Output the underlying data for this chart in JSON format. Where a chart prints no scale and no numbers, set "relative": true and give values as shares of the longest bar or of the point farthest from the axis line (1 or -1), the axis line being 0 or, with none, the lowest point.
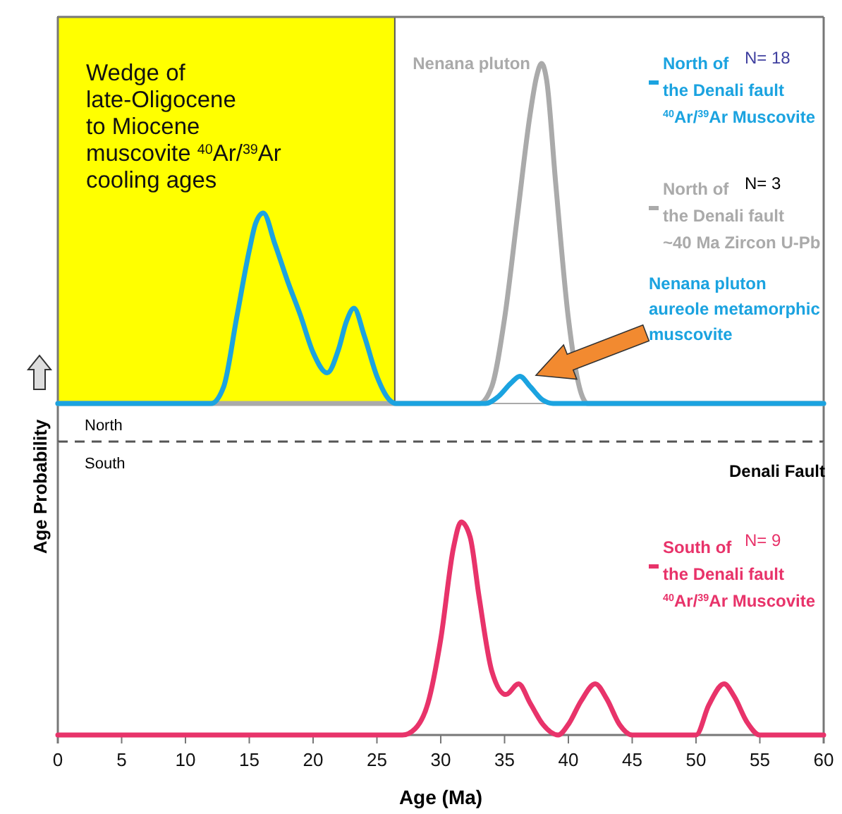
{
  "chart_data": [
    {
      "type": "line",
      "relative": true,
      "xlim": [
        0,
        60
      ],
      "tick_labels": false,
      "legend": "top right",
      "line_style": "solid",
      "marker": "none",
      "series": [
        {
          "name": "North of\nthe Denali fault\n~40 Ma Zircon U-Pb",
          "color": "#aaaaaa",
          "x": [
            0,
            33,
            34,
            35,
            36,
            37,
            37.5,
            37.9,
            38.3,
            39,
            40,
            41,
            41.5,
            60
          ],
          "values": [
            0,
            0,
            0.05,
            0.25,
            0.55,
            0.85,
            0.96,
            1,
            0.95,
            0.65,
            0.25,
            0.03,
            0,
            0
          ]
        },
        {
          "name": "North of\nthe Denali fault\n$^{40}$Ar/$^{39}$Ar Muscovite",
          "color": "#1ba3e0",
          "x": [
            0,
            12,
            13,
            14,
            15,
            15.5,
            16.1,
            17,
            18,
            19,
            20,
            21.1,
            22,
            22.6,
            23.2,
            24,
            25,
            26,
            26.5,
            33.5,
            34.5,
            35.5,
            36.2,
            37,
            38,
            38.8,
            60
          ],
          "values": [
            0,
            0,
            0.05,
            0.25,
            0.45,
            0.53,
            0.56,
            0.47,
            0.36,
            0.26,
            0.15,
            0.09,
            0.16,
            0.24,
            0.28,
            0.2,
            0.08,
            0.01,
            0,
            0,
            0.02,
            0.06,
            0.08,
            0.05,
            0.01,
            0,
            0
          ]
        }
      ],
      "bands": [
        {
          "axis": "x",
          "from": 0,
          "to": 26.4,
          "color": "#ffff00",
          "label": "Wedge of\nlate-Oligocene\nto Miocene\nmuscovite $^{40}$Ar/$^{39}$Ar\ncooling ages"
        }
      ],
      "annotations": [
        "N= 18",
        "N= 3",
        {
          "text": "Nenana pluton",
          "x": 37.9,
          "y": 1
        },
        "Nenana pluton\naureole metamorphic\nmuscovite",
        "North"
      ]
    },
    {
      "type": "line",
      "relative": true,
      "xlim": [
        0,
        60
      ],
      "xticks": [
        0,
        5,
        10,
        15,
        20,
        25,
        30,
        35,
        40,
        45,
        50,
        55,
        60
      ],
      "xlabel": "Age (Ma)",
      "ylabel": "Age Probability",
      "legend": "top right",
      "line_style": "solid",
      "marker": "none",
      "series": [
        {
          "name": "South of\nthe Denali fault\n$^{40}$Ar/$^{39}$Ar Muscovite",
          "color": "#e8336a",
          "x": [
            0,
            27,
            28,
            29,
            30,
            31,
            31.6,
            32.3,
            33,
            34,
            35.1,
            36.1,
            37,
            38,
            39.2,
            40,
            41,
            42.1,
            43,
            44,
            45,
            50,
            51,
            52.2,
            53,
            54,
            55,
            60
          ],
          "values": [
            0,
            0,
            0.03,
            0.15,
            0.45,
            0.88,
            1,
            0.93,
            0.65,
            0.3,
            0.19,
            0.24,
            0.15,
            0.05,
            0,
            0.05,
            0.16,
            0.24,
            0.17,
            0.05,
            0,
            0,
            0.14,
            0.24,
            0.18,
            0.06,
            0,
            0
          ]
        }
      ],
      "annotations": [
        "N= 9",
        "South",
        "Denali Fault"
      ]
    }
  ]
}
